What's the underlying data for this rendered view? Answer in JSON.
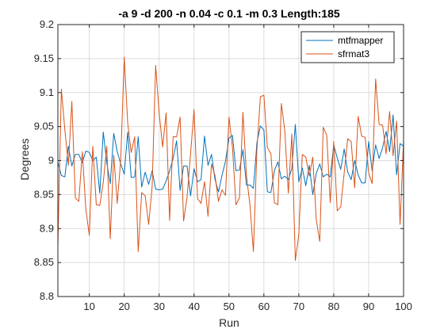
{
  "chart_data": {
    "type": "line",
    "title": "-a 9 -d 200 -n 0.04 -c 0.1 -m 0.3 Length:185",
    "xlabel": "Run",
    "ylabel": "Degrees",
    "xlim": [
      1,
      100
    ],
    "ylim": [
      8.8,
      9.2
    ],
    "xticks": [
      10,
      20,
      30,
      40,
      50,
      60,
      70,
      80,
      90,
      100
    ],
    "yticks": [
      8.8,
      8.85,
      8.9,
      8.95,
      9,
      9.05,
      9.1,
      9.15,
      9.2
    ],
    "ytick_labels": [
      "8.8",
      "8.85",
      "8.9",
      "8.95",
      "9",
      "9.05",
      "9.1",
      "9.15",
      "9.2"
    ],
    "xtick_labels": [
      "10",
      "20",
      "30",
      "40",
      "50",
      "60",
      "70",
      "80",
      "90",
      "100"
    ],
    "grid": true,
    "legend_position": "top-right",
    "series": [
      {
        "name": "mtfmapper",
        "color": "#0072BD",
        "x": [
          1,
          2,
          3,
          4,
          5,
          6,
          7,
          8,
          9,
          10,
          11,
          12,
          13,
          14,
          15,
          16,
          17,
          18,
          19,
          20,
          21,
          22,
          23,
          24,
          25,
          26,
          27,
          28,
          29,
          30,
          31,
          32,
          33,
          34,
          35,
          36,
          37,
          38,
          39,
          40,
          41,
          42,
          43,
          44,
          45,
          46,
          47,
          48,
          49,
          50,
          51,
          52,
          53,
          54,
          55,
          56,
          57,
          58,
          59,
          60,
          61,
          62,
          63,
          64,
          65,
          66,
          67,
          68,
          69,
          70,
          71,
          72,
          73,
          74,
          75,
          76,
          77,
          78,
          79,
          80,
          81,
          82,
          83,
          84,
          85,
          86,
          87,
          88,
          89,
          90,
          91,
          92,
          93,
          94,
          95,
          96,
          97,
          98,
          99,
          100
        ],
        "values": [
          8.998,
          8.978,
          8.976,
          9.021,
          8.992,
          9.009,
          9.009,
          8.997,
          9.014,
          9.012,
          9.0,
          9.005,
          8.952,
          9.042,
          8.997,
          8.966,
          9.04,
          9.013,
          8.995,
          8.98,
          9.042,
          8.975,
          8.976,
          9.035,
          8.961,
          8.983,
          8.965,
          8.985,
          8.958,
          8.957,
          8.958,
          8.97,
          8.985,
          9.003,
          9.029,
          8.956,
          8.992,
          8.992,
          8.948,
          8.988,
          8.969,
          8.972,
          9.036,
          8.993,
          9.009,
          8.972,
          8.954,
          8.978,
          8.999,
          9.033,
          9.037,
          8.985,
          8.986,
          9.016,
          8.964,
          8.964,
          8.959,
          9.026,
          9.051,
          9.045,
          8.954,
          8.953,
          8.985,
          8.998,
          8.973,
          8.977,
          8.972,
          8.988,
          9.053,
          8.969,
          8.989,
          8.963,
          8.993,
          8.95,
          8.981,
          8.995,
          8.976,
          8.98,
          8.976,
          9.023,
          9.004,
          8.987,
          9.017,
          8.983,
          8.972,
          9.0,
          8.979,
          8.967,
          8.967,
          9.028,
          8.985,
          9.023,
          9.003,
          9.019,
          9.043,
          9.013,
          9.067,
          8.979,
          9.025,
          9.021
        ]
      },
      {
        "name": "sfrmat3",
        "color": "#D95319",
        "x": [
          1,
          2,
          3,
          4,
          5,
          6,
          7,
          8,
          9,
          10,
          11,
          12,
          13,
          14,
          15,
          16,
          17,
          18,
          19,
          20,
          21,
          22,
          23,
          24,
          25,
          26,
          27,
          28,
          29,
          30,
          31,
          32,
          33,
          34,
          35,
          36,
          37,
          38,
          39,
          40,
          41,
          42,
          43,
          44,
          45,
          46,
          47,
          48,
          49,
          50,
          51,
          52,
          53,
          54,
          55,
          56,
          57,
          58,
          59,
          60,
          61,
          62,
          63,
          64,
          65,
          66,
          67,
          68,
          69,
          70,
          71,
          72,
          73,
          74,
          75,
          76,
          77,
          78,
          79,
          80,
          81,
          82,
          83,
          84,
          85,
          86,
          87,
          88,
          89,
          90,
          91,
          92,
          93,
          94,
          95,
          96,
          97,
          98,
          99,
          100
        ],
        "values": [
          8.875,
          9.105,
          9.045,
          8.993,
          9.087,
          8.945,
          8.94,
          9.013,
          8.929,
          8.89,
          9.021,
          8.935,
          8.934,
          8.968,
          9.021,
          8.885,
          9.008,
          8.937,
          9.001,
          9.152,
          9.055,
          9.012,
          9.035,
          8.866,
          8.953,
          8.948,
          8.906,
          8.962,
          9.14,
          9.07,
          9.02,
          9.07,
          8.912,
          9.035,
          9.035,
          9.064,
          8.911,
          8.946,
          9.01,
          9.075,
          8.944,
          8.937,
          8.969,
          8.918,
          8.995,
          8.978,
          8.94,
          8.957,
          8.949,
          9.064,
          9.019,
          8.935,
          8.945,
          9.071,
          8.978,
          8.935,
          8.866,
          9.016,
          9.094,
          9.096,
          9.019,
          9.01,
          8.938,
          8.935,
          9.084,
          9.043,
          8.952,
          9.039,
          8.853,
          8.891,
          9.009,
          9.005,
          8.977,
          9.005,
          8.913,
          8.881,
          9.049,
          9.037,
          8.938,
          9.028,
          8.926,
          8.932,
          8.982,
          9.032,
          9.028,
          8.96,
          9.065,
          9.036,
          9.034,
          8.982,
          8.966,
          9.12,
          9.053,
          9.052,
          9.01,
          9.072,
          9.007,
          9.058,
          8.906,
          9.03
        ]
      }
    ]
  }
}
